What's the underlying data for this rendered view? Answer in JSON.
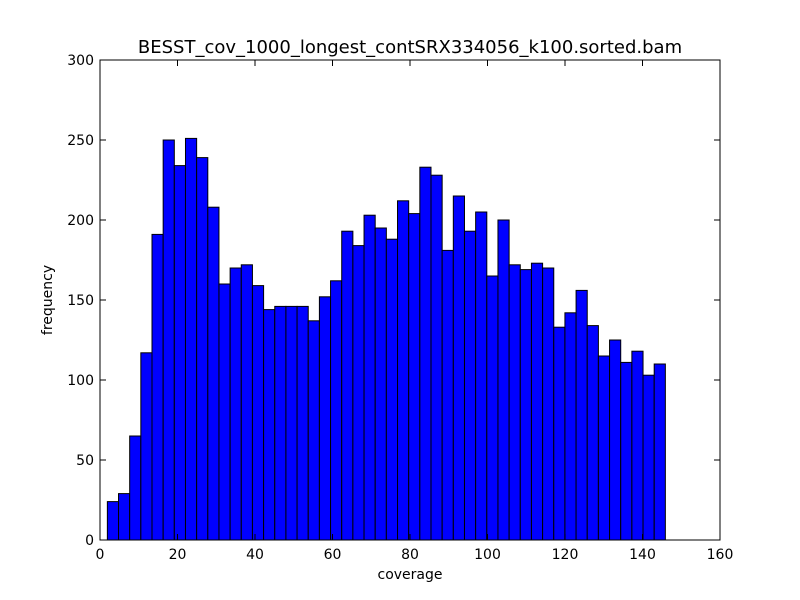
{
  "chart_data": {
    "type": "bar",
    "title": "BESST_cov_1000_longest_contSRX334056_k100.sorted.bam",
    "xlabel": "coverage",
    "ylabel": "frequency",
    "xlim": [
      0,
      160
    ],
    "ylim": [
      0,
      300
    ],
    "xticks": [
      "0",
      "20",
      "40",
      "60",
      "80",
      "100",
      "120",
      "140",
      "160"
    ],
    "yticks": [
      "0",
      "50",
      "100",
      "150",
      "200",
      "250",
      "300"
    ],
    "grid": false,
    "bar_color": "#0000ff",
    "bar_edge_color": "#000000",
    "bin_width": 2.88,
    "x_start": 1.9,
    "values": [
      24,
      29,
      65,
      117,
      191,
      250,
      234,
      251,
      239,
      208,
      160,
      170,
      172,
      159,
      144,
      146,
      146,
      146,
      137,
      152,
      162,
      193,
      184,
      203,
      195,
      188,
      212,
      204,
      233,
      228,
      181,
      215,
      193,
      205,
      165,
      200,
      172,
      169,
      173,
      170,
      133,
      142,
      156,
      134,
      115,
      125,
      111,
      118,
      103,
      110
    ]
  }
}
